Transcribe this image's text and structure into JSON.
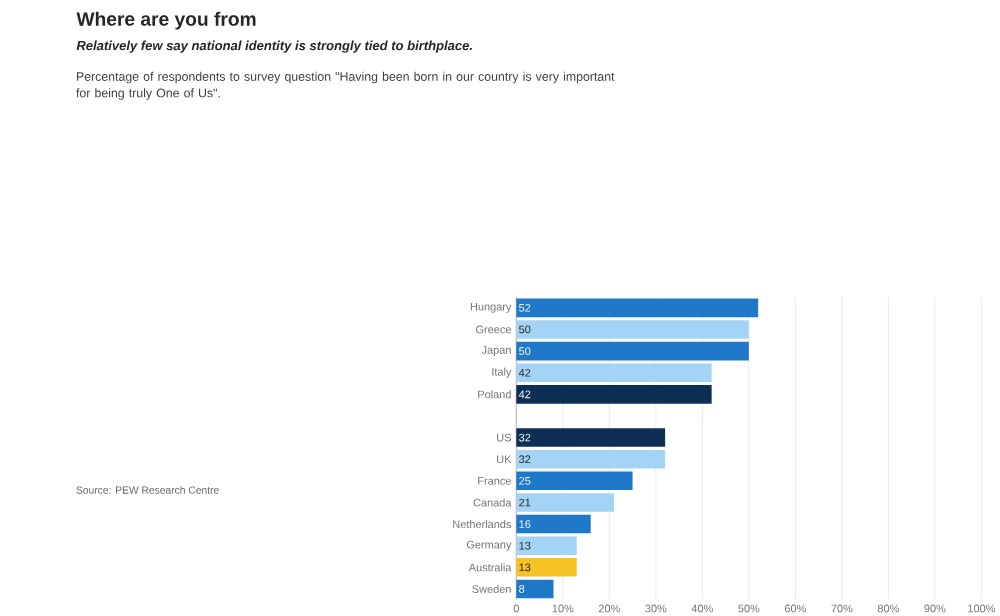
{
  "chart_data": {
    "type": "bar",
    "orientation": "horizontal",
    "title": "Where are you from",
    "subtitle": "Relatively few say national identity is strongly tied to birthplace.",
    "annotations": [
      "Percentage of respondents to survey question \"Having been born in our country is very important for being truly One of Us\".",
      "Source: PEW Research Centre"
    ],
    "categories": [
      "Hungary",
      "Greece",
      "Japan",
      "Italy",
      "Poland",
      null,
      "US",
      "UK",
      "France",
      "Canada",
      "Netherlands",
      "Germany",
      "Australia",
      "Sweden"
    ],
    "values": [
      52,
      50,
      50,
      42,
      42,
      null,
      32,
      32,
      25,
      21,
      16,
      13,
      13,
      8
    ],
    "value_labels": [
      "52",
      "50",
      "50",
      "42",
      "42",
      null,
      "32",
      "32",
      "25",
      "21",
      "16",
      "13",
      "13",
      "8"
    ],
    "colors": [
      "#1f78c8",
      "#a3d4f5",
      "#1f78c8",
      "#a3d4f5",
      "#0d2f55",
      "#a3d4f5",
      "#0d2f55",
      "#a3d4f5",
      "#1f78c8",
      "#a3d4f5",
      "#1f78c8",
      "#a3d4f5",
      "#f6c224",
      "#1f78c8"
    ],
    "xlim": [
      0,
      100
    ],
    "xticks": [
      0,
      {
        "value": 10,
        "label": "10%"
      },
      {
        "value": 20,
        "label": "20%"
      },
      {
        "value": 30,
        "label": "30%"
      },
      {
        "value": 40,
        "label": "40%"
      },
      {
        "value": 50,
        "label": "50%"
      },
      {
        "value": 60,
        "label": "60%"
      },
      {
        "value": 70,
        "label": "70%"
      },
      {
        "value": 80,
        "label": "80%"
      },
      {
        "value": 90,
        "label": "90%"
      },
      {
        "value": 100,
        "label": "100%"
      }
    ],
    "grid": "x"
  }
}
